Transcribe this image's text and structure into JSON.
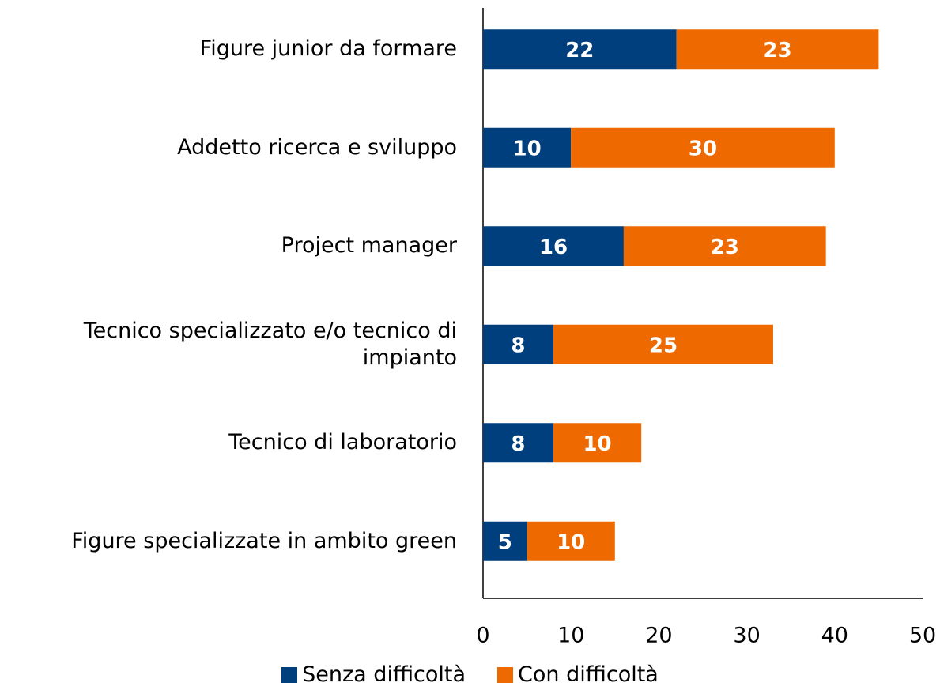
{
  "chart_data": {
    "type": "stacked-bar-horizontal",
    "categories": [
      "Figure junior da formare",
      "Addetto ricerca e sviluppo",
      "Project manager",
      "Tecnico specializzato e/o tecnico di impianto",
      "Tecnico di laboratorio",
      "Figure specializzate in ambito green"
    ],
    "series": [
      {
        "name": "Senza difficoltà",
        "color": "#003f7d",
        "values": [
          22,
          10,
          16,
          8,
          8,
          5
        ]
      },
      {
        "name": "Con difficoltà",
        "color": "#ee6a00",
        "values": [
          23,
          30,
          23,
          25,
          10,
          10
        ]
      }
    ],
    "xlim": [
      0,
      50
    ],
    "xticks": [
      0,
      10,
      20,
      30,
      40,
      50
    ],
    "grid": false,
    "legend": "bottom"
  }
}
